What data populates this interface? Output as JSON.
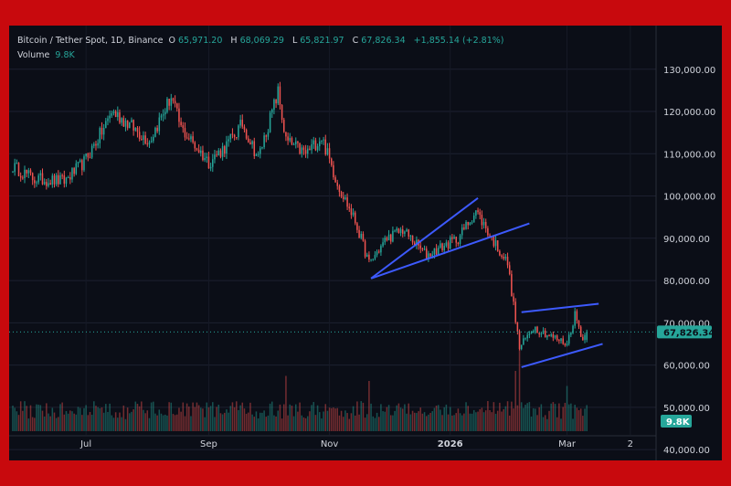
{
  "header": {
    "symbol": "Bitcoin / Tether Spot, 1D, Binance",
    "open_label": "O",
    "open": "65,971.20",
    "high_label": "H",
    "high": "68,069.29",
    "low_label": "L",
    "low": "65,821.97",
    "close_label": "C",
    "close": "67,826.34",
    "change": "+1,855.14 (+2.81%)",
    "volume_label": "Volume",
    "volume": "9.8K"
  },
  "colors": {
    "up": "#26a69a",
    "down": "#ef5350",
    "trendline": "#3d5afe",
    "background": "#0b0e17",
    "frame": "#c8090d"
  },
  "chart_data": {
    "type": "candlestick",
    "y_ticks": [
      "130,000.00",
      "120,000.00",
      "110,000.00",
      "100,000.00",
      "90,000.00",
      "80,000.00",
      "70,000.00",
      "60,000.00",
      "50,000.00",
      "40,000.00"
    ],
    "y_tick_values": [
      130000,
      120000,
      110000,
      100000,
      90000,
      80000,
      70000,
      60000,
      50000,
      40000
    ],
    "x_ticks": [
      {
        "label": "Jul",
        "date": "2025-07-01"
      },
      {
        "label": "Sep",
        "date": "2025-09-01"
      },
      {
        "label": "Nov",
        "date": "2025-11-01"
      },
      {
        "label": "2026",
        "date": "2026-01-01",
        "bold": true
      },
      {
        "label": "Mar",
        "date": "2026-03-01"
      },
      {
        "label": "2",
        "date": "2026-04-02"
      }
    ],
    "last_price": 67826.34,
    "last_price_label": "67,826.34",
    "last_volume_label": "9.8K",
    "x_range": [
      "2025-05-25",
      "2026-04-15"
    ],
    "y_range": [
      37000,
      136000
    ],
    "grid": true,
    "closes_keypoints": [
      [
        "2025-05-25",
        107000
      ],
      [
        "2025-06-05",
        104000
      ],
      [
        "2025-06-20",
        103500
      ],
      [
        "2025-06-30",
        108000
      ],
      [
        "2025-07-10",
        116000
      ],
      [
        "2025-07-14",
        120000
      ],
      [
        "2025-07-20",
        118000
      ],
      [
        "2025-08-02",
        113000
      ],
      [
        "2025-08-13",
        123500
      ],
      [
        "2025-08-18",
        116000
      ],
      [
        "2025-09-01",
        108000
      ],
      [
        "2025-09-10",
        112000
      ],
      [
        "2025-09-18",
        117000
      ],
      [
        "2025-09-26",
        109000
      ],
      [
        "2025-10-06",
        124500
      ],
      [
        "2025-10-10",
        113000
      ],
      [
        "2025-10-20",
        110000
      ],
      [
        "2025-10-28",
        114000
      ],
      [
        "2025-11-05",
        103000
      ],
      [
        "2025-11-14",
        94000
      ],
      [
        "2025-11-21",
        84000
      ],
      [
        "2025-11-30",
        90000
      ],
      [
        "2025-12-08",
        92000
      ],
      [
        "2025-12-20",
        86000
      ],
      [
        "2026-01-05",
        90000
      ],
      [
        "2026-01-14",
        96500
      ],
      [
        "2026-01-22",
        90000
      ],
      [
        "2026-01-30",
        84000
      ],
      [
        "2026-02-05",
        64000
      ],
      [
        "2026-02-12",
        69000
      ],
      [
        "2026-02-20",
        67000
      ],
      [
        "2026-03-01",
        65000
      ],
      [
        "2026-03-05",
        72000
      ],
      [
        "2026-03-09",
        66000
      ],
      [
        "2026-03-11",
        67826
      ]
    ],
    "volume_spikes": [
      [
        "2025-10-10",
        0.55
      ],
      [
        "2025-11-21",
        0.5
      ],
      [
        "2026-02-05",
        1.0
      ],
      [
        "2026-02-03",
        0.6
      ],
      [
        "2026-03-01",
        0.45
      ]
    ],
    "trendlines": [
      [
        [
          "2025-11-22",
          80500
        ],
        [
          "2026-01-15",
          99500
        ]
      ],
      [
        [
          "2025-11-22",
          80500
        ],
        [
          "2026-02-10",
          93500
        ]
      ],
      [
        [
          "2026-02-06",
          72500
        ],
        [
          "2026-03-17",
          74500
        ]
      ],
      [
        [
          "2026-02-06",
          59500
        ],
        [
          "2026-03-19",
          65000
        ]
      ]
    ]
  }
}
